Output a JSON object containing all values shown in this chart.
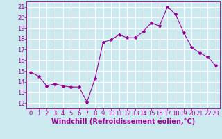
{
  "x": [
    0,
    1,
    2,
    3,
    4,
    5,
    6,
    7,
    8,
    9,
    10,
    11,
    12,
    13,
    14,
    15,
    16,
    17,
    18,
    19,
    20,
    21,
    22,
    23
  ],
  "y": [
    14.9,
    14.5,
    13.6,
    13.8,
    13.6,
    13.5,
    13.5,
    12.1,
    14.3,
    17.7,
    17.9,
    18.4,
    18.1,
    18.1,
    18.7,
    19.5,
    19.2,
    21.0,
    20.3,
    18.6,
    17.2,
    16.7,
    16.3,
    15.5
  ],
  "line_color": "#990099",
  "marker": "*",
  "marker_size": 3,
  "linewidth": 0.8,
  "xlabel": "Windchill (Refroidissement éolien,°C)",
  "xlim": [
    -0.5,
    23.5
  ],
  "ylim": [
    11.5,
    21.5
  ],
  "yticks": [
    12,
    13,
    14,
    15,
    16,
    17,
    18,
    19,
    20,
    21
  ],
  "xticks": [
    0,
    1,
    2,
    3,
    4,
    5,
    6,
    7,
    8,
    9,
    10,
    11,
    12,
    13,
    14,
    15,
    16,
    17,
    18,
    19,
    20,
    21,
    22,
    23
  ],
  "background_color": "#cce9f0",
  "grid_color": "#ffffff",
  "tick_color": "#990099",
  "label_color": "#990099",
  "tick_fontsize": 6,
  "xlabel_fontsize": 7
}
